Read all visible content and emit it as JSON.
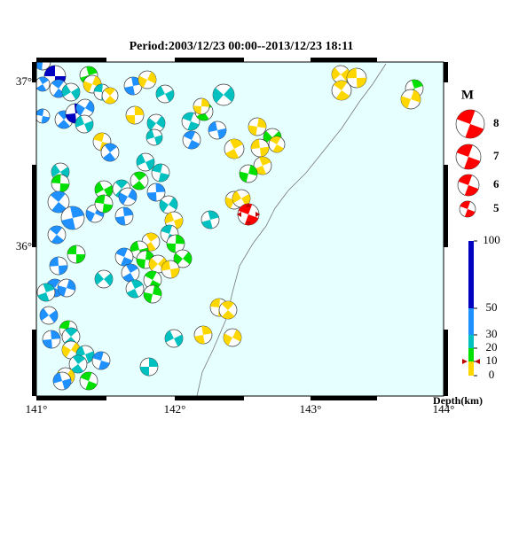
{
  "title": "Period:2003/12/23 00:00--2013/12/23 18:11",
  "map": {
    "lon_labels": [
      "141°",
      "142°",
      "143°",
      "144°"
    ],
    "lat_labels": [
      "37°",
      "36°"
    ]
  },
  "magnitude_legend": {
    "title": "M",
    "labels": [
      "8",
      "7",
      "6",
      "5"
    ]
  },
  "depth_scale": {
    "labels": [
      "100",
      "50",
      "30",
      "20",
      "10",
      "0"
    ],
    "title": "Depth(km)"
  }
}
